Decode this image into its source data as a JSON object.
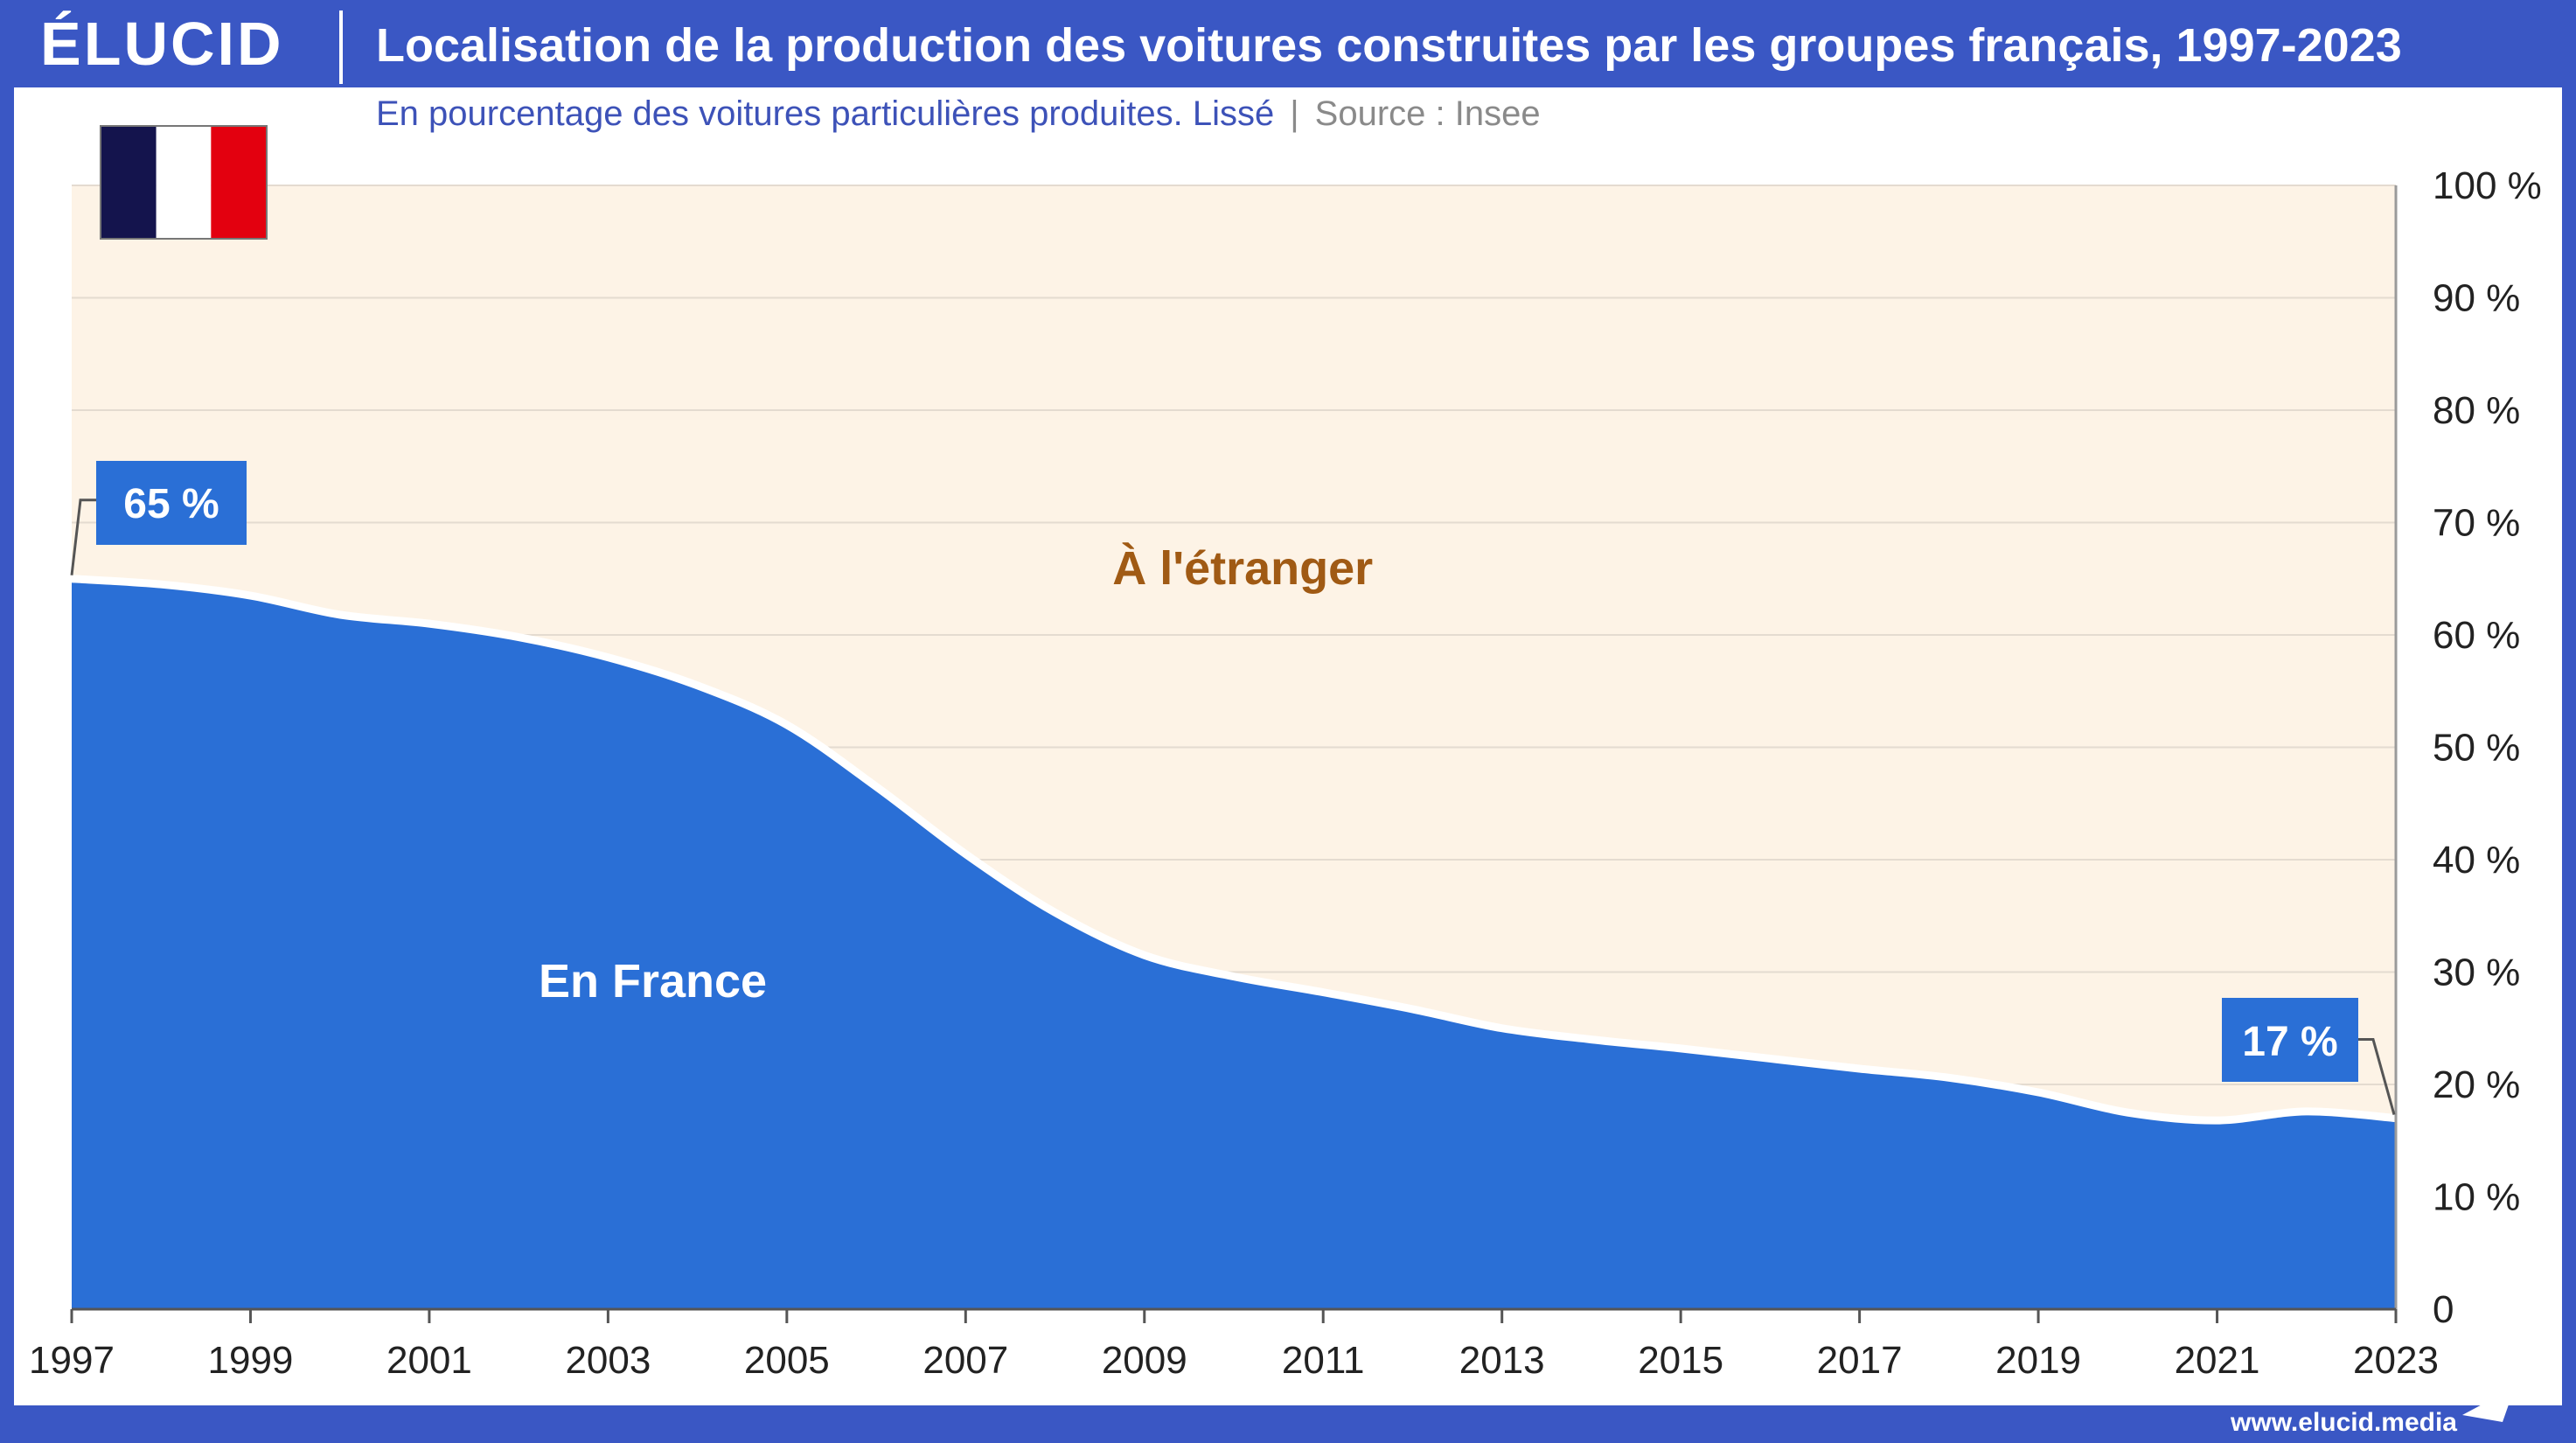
{
  "header": {
    "logo": "ÉLUCID",
    "title": "Localisation de la production des voitures construites par les groupes français, 1997-2023"
  },
  "subtitle": {
    "text": "En pourcentage des voitures particulières produites. Lissé",
    "separator": "|",
    "source": "Source : Insee"
  },
  "footer": {
    "url": "www.elucid.media"
  },
  "flag": {
    "colors": [
      "#14144d",
      "#ffffff",
      "#e3000f"
    ],
    "icon": "france-flag-icon"
  },
  "colors": {
    "france_area": "#2a6fd6",
    "abroad_area": "#fdf3e6",
    "callout_bg": "#2a6fd6",
    "abroad_label": "#a05a14",
    "brand": "#3a57c4"
  },
  "chart_data": {
    "type": "area",
    "x": [
      1997,
      1998,
      1999,
      2000,
      2001,
      2002,
      2003,
      2004,
      2005,
      2006,
      2007,
      2008,
      2009,
      2010,
      2011,
      2012,
      2013,
      2014,
      2015,
      2016,
      2017,
      2018,
      2019,
      2020,
      2021,
      2022,
      2023
    ],
    "series": [
      {
        "name": "En France",
        "values": [
          65,
          64.5,
          63.5,
          61.8,
          61,
          59.8,
          58,
          55.5,
          52,
          46.5,
          40.5,
          35.3,
          31.5,
          29.6,
          28.2,
          26.7,
          25,
          24,
          23.2,
          22.3,
          21.4,
          20.6,
          19.3,
          17.5,
          16.8,
          17.6,
          17
        ]
      },
      {
        "name": "À l'étranger",
        "values": [
          35,
          35.5,
          36.5,
          38.2,
          39,
          40.2,
          42,
          44.5,
          48,
          53.5,
          59.5,
          64.7,
          68.5,
          70.4,
          71.8,
          73.3,
          75,
          76,
          76.8,
          77.7,
          78.6,
          79.4,
          80.7,
          82.5,
          83.2,
          82.4,
          83
        ]
      }
    ],
    "xticks": [
      "1997",
      "1999",
      "2001",
      "2003",
      "2005",
      "2007",
      "2009",
      "2011",
      "2013",
      "2015",
      "2017",
      "2019",
      "2021",
      "2023"
    ],
    "yticks": [
      "0",
      "10 %",
      "20 %",
      "30 %",
      "40 %",
      "50 %",
      "60 %",
      "70 %",
      "80 %",
      "90 %",
      "100 %"
    ],
    "ylim": [
      0,
      100
    ],
    "xlim": [
      1997,
      2023
    ],
    "grid": true,
    "stacked": true,
    "annotations": [
      {
        "text": "65 %",
        "x": 1997,
        "y": 65
      },
      {
        "text": "17 %",
        "x": 2023,
        "y": 17
      }
    ],
    "area_labels": [
      "À l'étranger",
      "En France"
    ]
  }
}
